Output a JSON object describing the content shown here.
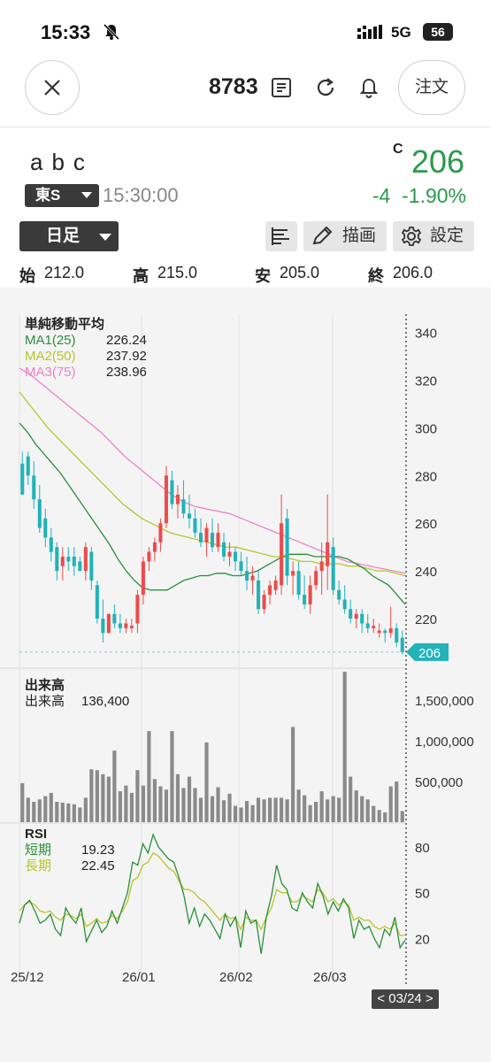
{
  "status_bar": {
    "time": "15:33",
    "network": "5G",
    "battery": "56"
  },
  "header": {
    "code": "8783",
    "order_label": "注文"
  },
  "stock": {
    "name": "abc",
    "market": "東S",
    "time": "15:30:00",
    "price_flag": "C",
    "price": "206",
    "change": "-4",
    "change_pct": "-1.90%"
  },
  "toolbar": {
    "period": "日足",
    "draw_label": "描画",
    "settings_label": "設定"
  },
  "ohlc": [
    {
      "key": "始",
      "value": "212.0"
    },
    {
      "key": "高",
      "value": "215.0"
    },
    {
      "key": "安",
      "value": "205.0"
    },
    {
      "key": "終",
      "value": "206.0"
    }
  ],
  "colors": {
    "up": "#ee4b4b",
    "down": "#22b2b8",
    "ma1": "#2a8f3a",
    "ma2": "#b8c62a",
    "ma3": "#ee80c8",
    "volume": "#8a8a8a",
    "rsi_short": "#2a8f3a",
    "rsi_long": "#b8c62a",
    "last_price": "#22b2b8"
  },
  "ma_panel": {
    "title": "単純移動平均",
    "items": [
      {
        "label": "MA1(25)",
        "value": "226.24"
      },
      {
        "label": "MA2(50)",
        "value": "237.92"
      },
      {
        "label": "MA3(75)",
        "value": "238.96"
      }
    ]
  },
  "volume_panel": {
    "title": "出来高",
    "label": "出来高",
    "value": "136,400"
  },
  "rsi_panel": {
    "title": "RSI",
    "items": [
      {
        "label": "短期",
        "value": "19.23"
      },
      {
        "label": "長期",
        "value": "22.45"
      }
    ]
  },
  "last_price_tag": "206",
  "cursor_date": "< 03/24 >",
  "chart_data": [
    {
      "type": "candlestick",
      "x_tick_labels": [
        "25/12",
        "26/01",
        "26/02",
        "26/03"
      ],
      "ylim": [
        200,
        345
      ],
      "y_ticks": [
        "340",
        "320",
        "300",
        "280",
        "260",
        "240",
        "220",
        "206"
      ],
      "candles": [
        [
          285,
          290,
          272,
          272
        ],
        [
          288,
          290,
          276,
          280
        ],
        [
          280,
          286,
          266,
          270
        ],
        [
          270,
          276,
          256,
          258
        ],
        [
          262,
          266,
          250,
          254
        ],
        [
          254,
          258,
          244,
          248
        ],
        [
          250,
          252,
          236,
          240
        ],
        [
          242,
          250,
          236,
          246
        ],
        [
          246,
          250,
          240,
          244
        ],
        [
          246,
          250,
          238,
          242
        ],
        [
          244,
          246,
          240,
          240
        ],
        [
          240,
          252,
          236,
          250
        ],
        [
          248,
          250,
          232,
          236
        ],
        [
          234,
          236,
          218,
          220
        ],
        [
          220,
          228,
          210,
          214
        ],
        [
          214,
          222,
          214,
          222
        ],
        [
          222,
          226,
          216,
          218
        ],
        [
          218,
          222,
          214,
          216
        ],
        [
          216,
          220,
          214,
          218
        ],
        [
          216,
          220,
          214,
          217
        ],
        [
          218,
          232,
          214,
          230
        ],
        [
          230,
          246,
          226,
          244
        ],
        [
          244,
          250,
          240,
          248
        ],
        [
          248,
          254,
          244,
          252
        ],
        [
          252,
          262,
          248,
          260
        ],
        [
          260,
          284,
          258,
          280
        ],
        [
          278,
          282,
          266,
          268
        ],
        [
          268,
          276,
          262,
          272
        ],
        [
          270,
          278,
          262,
          264
        ],
        [
          264,
          272,
          258,
          262
        ],
        [
          262,
          266,
          254,
          256
        ],
        [
          256,
          262,
          250,
          252
        ],
        [
          252,
          260,
          246,
          258
        ],
        [
          256,
          262,
          248,
          250
        ],
        [
          250,
          260,
          248,
          256
        ],
        [
          252,
          256,
          244,
          246
        ],
        [
          246,
          252,
          242,
          248
        ],
        [
          248,
          250,
          240,
          244
        ],
        [
          244,
          248,
          238,
          240
        ],
        [
          240,
          246,
          232,
          236
        ],
        [
          236,
          242,
          230,
          238
        ],
        [
          236,
          240,
          222,
          224
        ],
        [
          224,
          232,
          222,
          230
        ],
        [
          230,
          236,
          226,
          234
        ],
        [
          232,
          238,
          230,
          236
        ],
        [
          234,
          272,
          230,
          260
        ],
        [
          262,
          266,
          234,
          238
        ],
        [
          238,
          244,
          230,
          240
        ],
        [
          240,
          244,
          228,
          230
        ],
        [
          230,
          238,
          224,
          226
        ],
        [
          226,
          238,
          222,
          234
        ],
        [
          234,
          242,
          232,
          240
        ],
        [
          240,
          252,
          230,
          244
        ],
        [
          242,
          272,
          232,
          252
        ],
        [
          250,
          254,
          230,
          232
        ],
        [
          232,
          236,
          226,
          228
        ],
        [
          228,
          234,
          222,
          224
        ],
        [
          224,
          228,
          218,
          220
        ],
        [
          220,
          224,
          216,
          222
        ],
        [
          222,
          224,
          214,
          218
        ],
        [
          218,
          222,
          214,
          216
        ],
        [
          216,
          220,
          214,
          217
        ],
        [
          214,
          218,
          212,
          215
        ],
        [
          215,
          216,
          210,
          214
        ],
        [
          214,
          225,
          212,
          216
        ],
        [
          216,
          218,
          208,
          210
        ],
        [
          212,
          215,
          205,
          206
        ]
      ],
      "ma1": [
        302,
        298,
        293,
        289,
        285,
        281,
        276,
        271,
        266,
        261,
        256,
        251,
        245,
        240,
        236,
        233,
        232,
        232,
        232,
        234,
        236,
        237,
        238,
        238,
        239,
        239,
        238,
        238,
        239,
        240,
        242,
        244,
        246,
        247,
        247,
        247,
        246,
        246,
        246,
        246,
        245,
        243,
        241,
        238,
        236,
        234,
        230,
        226
      ],
      "ma2": [
        315,
        310,
        305,
        300,
        296,
        292,
        288,
        284,
        280,
        276,
        272,
        268,
        265,
        262,
        260,
        258,
        256,
        255,
        254,
        253,
        252,
        251,
        250,
        250,
        249,
        248,
        247,
        246,
        246,
        245,
        244,
        244,
        243,
        243,
        243,
        242,
        242,
        241,
        240,
        240,
        239,
        238
      ],
      "ma3": [
        325,
        322,
        318,
        314,
        310,
        306,
        302,
        298,
        293,
        288,
        284,
        280,
        276,
        272,
        269,
        267,
        266,
        265,
        264,
        262,
        260,
        258,
        256,
        254,
        252,
        250,
        248,
        246,
        244,
        243,
        242,
        241,
        240,
        239
      ]
    },
    {
      "type": "bar",
      "title": "出来高",
      "ylim": [
        0,
        1850000
      ],
      "y_ticks": [
        "1,500,000",
        "1,000,000",
        "500,000"
      ],
      "values": [
        480000,
        300000,
        250000,
        280000,
        320000,
        360000,
        250000,
        240000,
        230000,
        220000,
        180000,
        300000,
        650000,
        640000,
        590000,
        560000,
        880000,
        380000,
        450000,
        360000,
        640000,
        450000,
        1120000,
        530000,
        440000,
        400000,
        1120000,
        590000,
        420000,
        560000,
        420000,
        300000,
        980000,
        320000,
        430000,
        270000,
        350000,
        200000,
        180000,
        260000,
        210000,
        300000,
        280000,
        300000,
        300000,
        300000,
        280000,
        1170000,
        400000,
        330000,
        210000,
        250000,
        380000,
        280000,
        320000,
        300000,
        1850000,
        560000,
        390000,
        320000,
        280000,
        200000,
        150000,
        120000,
        440000,
        500000,
        136400
      ]
    },
    {
      "type": "line",
      "title": "RSI",
      "ylim": [
        0,
        95
      ],
      "y_ticks": [
        "80",
        "50",
        "20"
      ],
      "series": [
        {
          "name": "短期",
          "values": [
            30,
            42,
            45,
            38,
            30,
            32,
            36,
            26,
            22,
            40,
            34,
            30,
            40,
            18,
            25,
            32,
            24,
            28,
            38,
            30,
            40,
            50,
            70,
            68,
            82,
            76,
            88,
            80,
            76,
            72,
            70,
            60,
            48,
            30,
            40,
            28,
            36,
            32,
            26,
            20,
            36,
            28,
            34,
            14,
            38,
            30,
            32,
            10,
            34,
            48,
            68,
            56,
            52,
            40,
            38,
            50,
            44,
            40,
            56,
            48,
            36,
            44,
            38,
            46,
            40,
            20,
            32,
            26,
            28,
            20,
            14,
            26,
            22,
            34,
            14,
            19
          ]
        },
        {
          "name": "長期",
          "values": [
            38,
            42,
            44,
            42,
            38,
            37,
            38,
            34,
            32,
            36,
            35,
            33,
            36,
            28,
            30,
            33,
            30,
            31,
            35,
            33,
            38,
            44,
            58,
            60,
            68,
            70,
            76,
            74,
            70,
            66,
            64,
            58,
            52,
            52,
            50,
            46,
            44,
            40,
            36,
            32,
            36,
            33,
            34,
            26,
            34,
            32,
            32,
            26,
            34,
            40,
            52,
            50,
            50,
            44,
            44,
            48,
            46,
            44,
            52,
            50,
            44,
            46,
            42,
            44,
            42,
            32,
            34,
            32,
            32,
            28,
            26,
            28,
            26,
            30,
            22,
            22
          ]
        }
      ]
    }
  ]
}
